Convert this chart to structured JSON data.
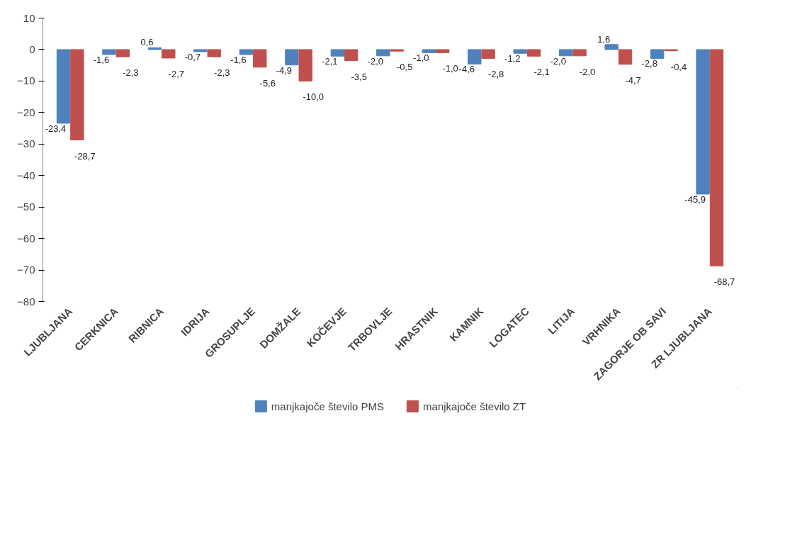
{
  "chart_data": {
    "type": "bar",
    "categories": [
      "LJUBLJANA",
      "CERKNICA",
      "RIBNICA",
      "IDRIJA",
      "GROSUPLJE",
      "DOMŽALE",
      "KOČEVJE",
      "TRBOVLJE",
      "HRASTNIK",
      "KAMNIK",
      "LOGATEC",
      "LITIJA",
      "VRHNIKA",
      "ZAGORJE OB SAVI",
      "ZR LJUBLJANA"
    ],
    "series": [
      {
        "name": "manjkajoče število PMS",
        "color": "#4f81bd",
        "values": [
          -23.4,
          -1.6,
          0.6,
          -0.7,
          -1.6,
          -4.9,
          -2.1,
          -2.0,
          -1.0,
          -4.6,
          -1.2,
          -2.0,
          1.6,
          -2.8,
          -45.9
        ],
        "value_labels": [
          "-23,4",
          "-1,6",
          "0,6",
          "-0,7",
          "-1,6",
          "-4,9",
          "-2,1",
          "-2,0",
          "-1,0",
          "-4,6",
          "-1,2",
          "-2,0",
          "1,6",
          "-2,8",
          "-45,9"
        ]
      },
      {
        "name": "manjkajoče število ZT",
        "color": "#c0504d",
        "values": [
          -28.7,
          -2.3,
          -2.7,
          -2.3,
          -5.6,
          -10.0,
          -3.5,
          -0.5,
          -1.0,
          -2.8,
          -2.1,
          -2.0,
          -4.7,
          -0.4,
          -68.7
        ],
        "value_labels": [
          "-28,7",
          "-2,3",
          "-2,7",
          "-2,3",
          "-5,6",
          "-10,0",
          "-3,5",
          "-0,5",
          "-1,0",
          "-2,8",
          "-2,1",
          "-2,0",
          "-4,7",
          "-0,4",
          "-68,7"
        ]
      }
    ],
    "ylim": [
      -80,
      10
    ],
    "yticks": [
      -80,
      -70,
      -60,
      -50,
      -40,
      -30,
      -20,
      -10,
      0,
      10
    ],
    "grid": false,
    "legend": "bottom"
  }
}
